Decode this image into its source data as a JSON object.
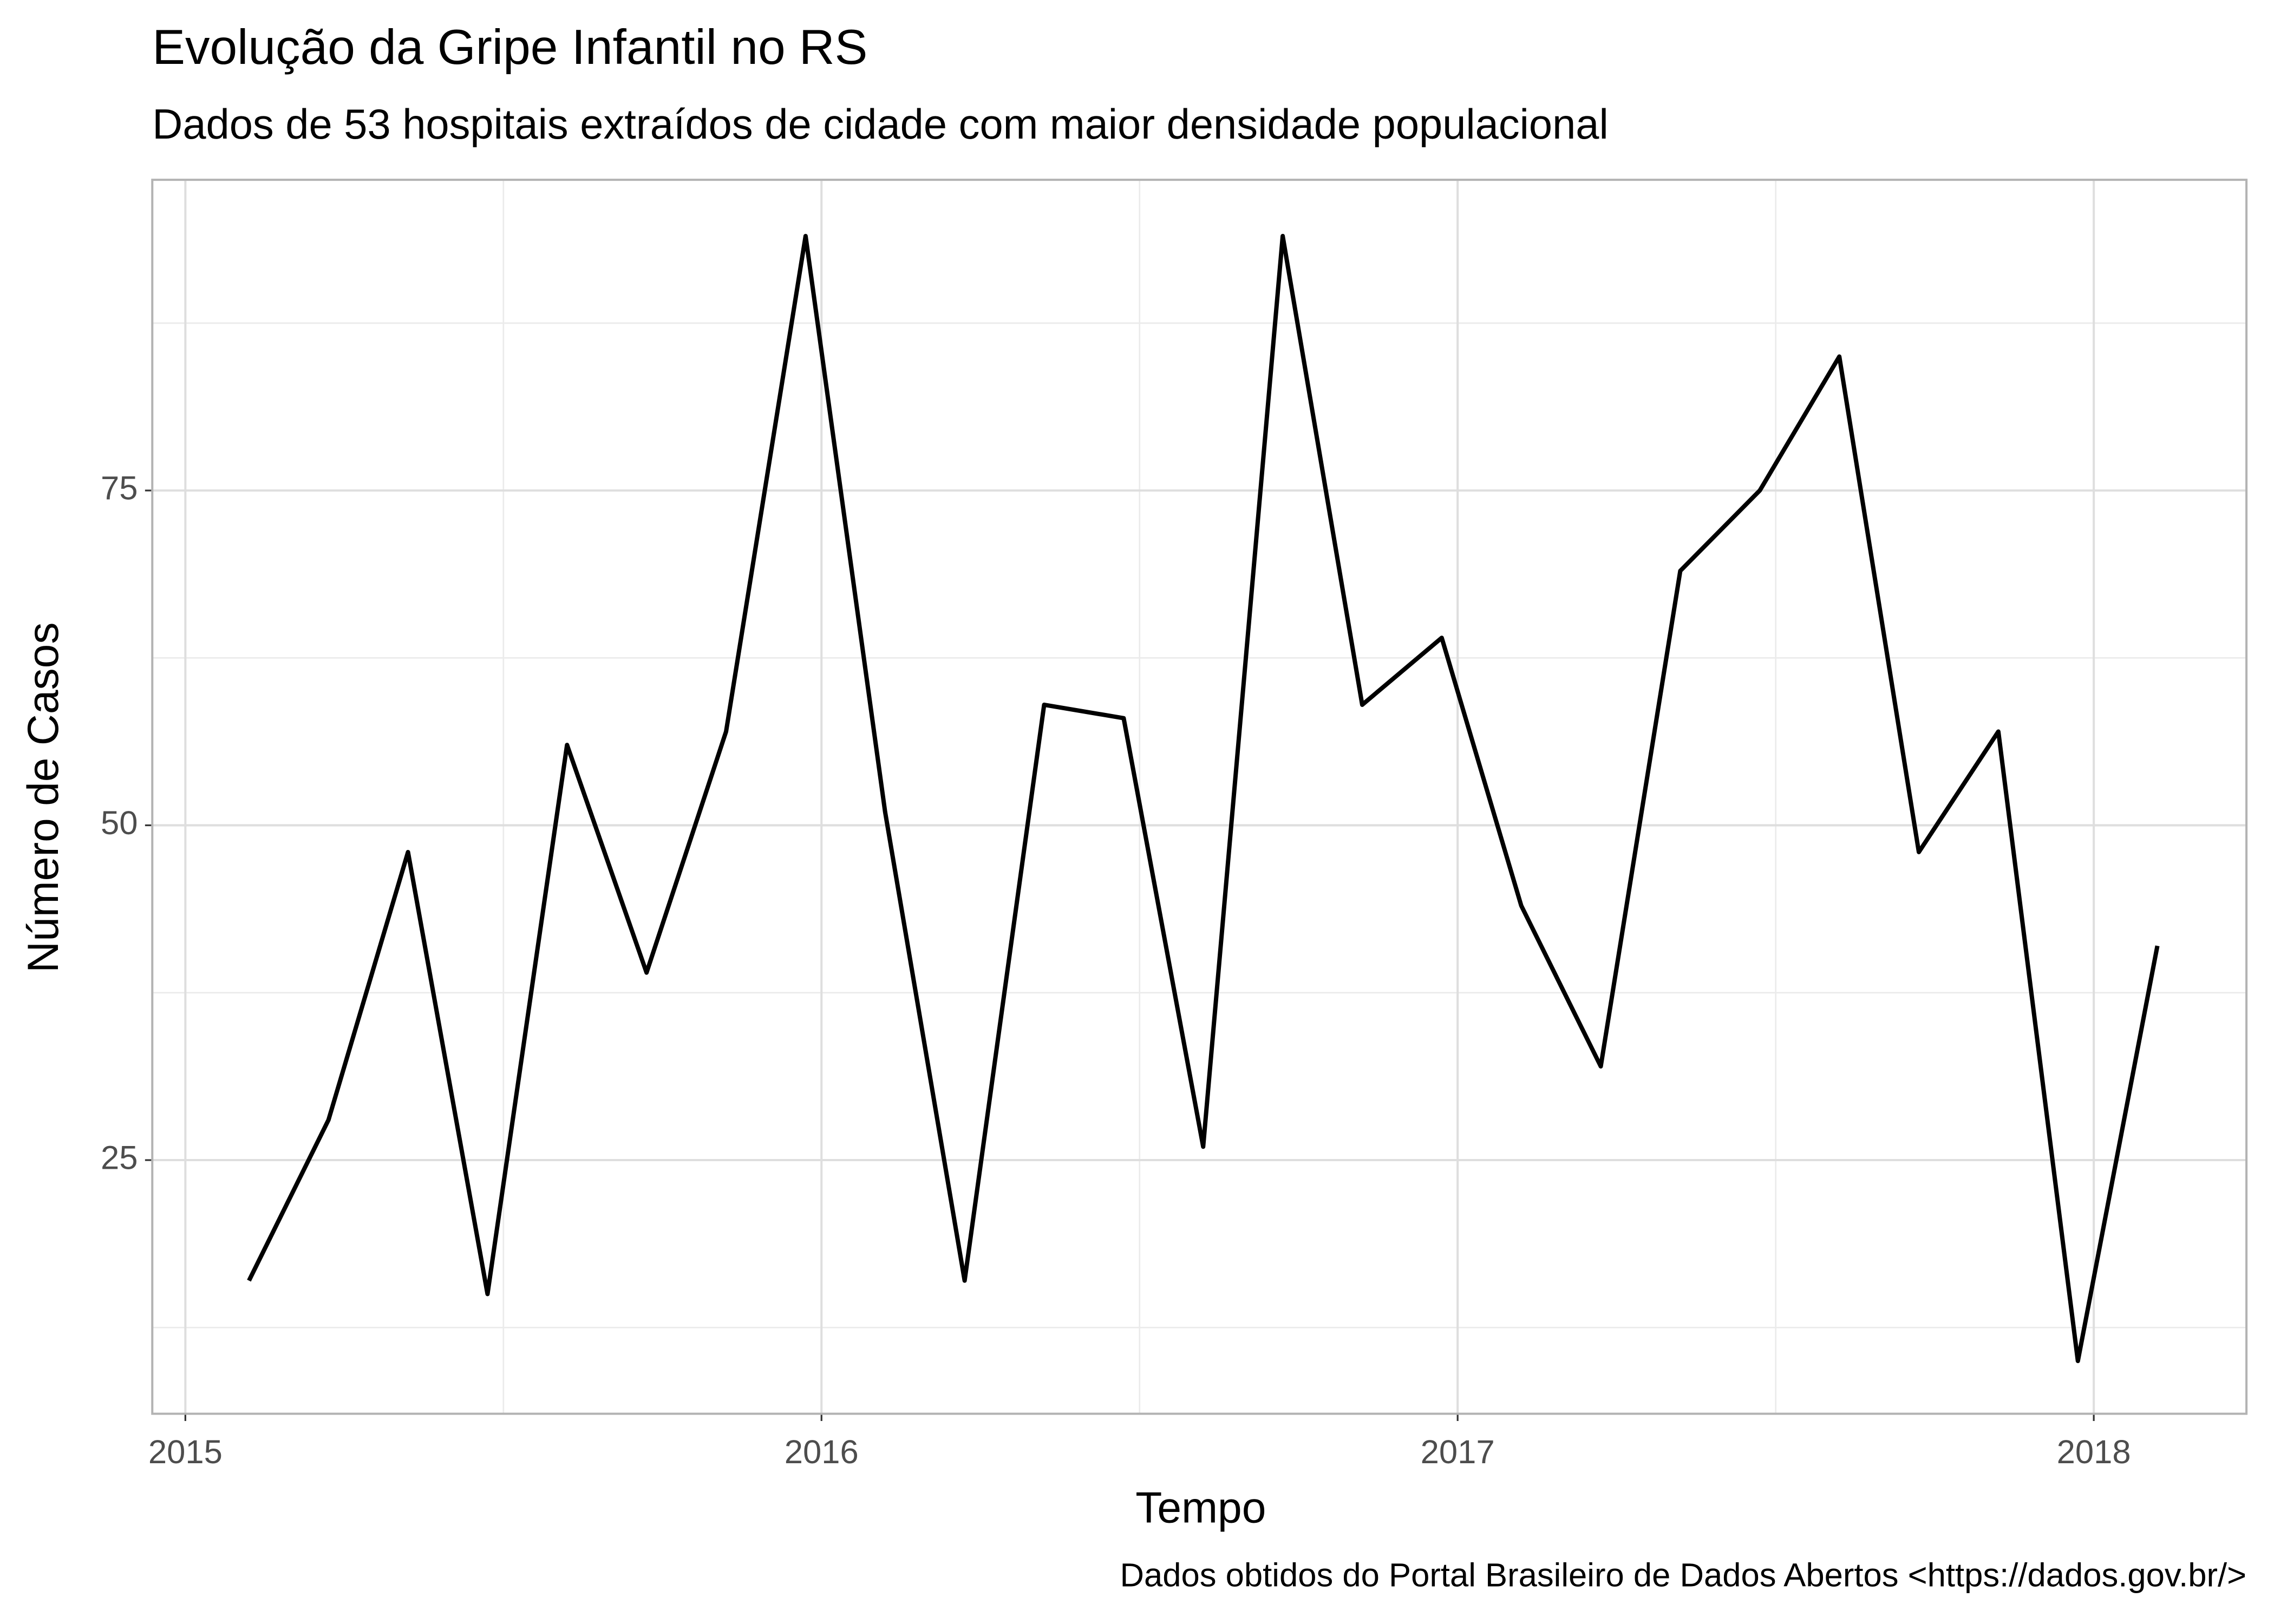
{
  "chart_data": {
    "type": "line",
    "title": "Evolução da Gripe Infantil no RS",
    "subtitle": "Dados de 53 hospitais extraídos de cidade com maior densidade populacional",
    "caption": "Dados obtidos do Portal Brasileiro de Dados Abertos <https://dados.gov.br/>",
    "x_label": "Tempo",
    "y_label": "Número de Casos",
    "x": [
      2015.1,
      2015.225,
      2015.35,
      2015.475,
      2015.6,
      2015.725,
      2015.85,
      2015.975,
      2016.1,
      2016.225,
      2016.35,
      2016.475,
      2016.6,
      2016.725,
      2016.85,
      2016.975,
      2017.1,
      2017.225,
      2017.35,
      2017.475,
      2017.6,
      2017.725,
      2017.85,
      2017.975,
      2018.1
    ],
    "series": [
      {
        "name": "Casos",
        "color": "#000000",
        "values": [
          16,
          28,
          48,
          15,
          56,
          39,
          57,
          94,
          51,
          16,
          59,
          58,
          26,
          94,
          59,
          64,
          44,
          32,
          69,
          75,
          85,
          48,
          57,
          10,
          41
        ]
      }
    ],
    "xlim": [
      2014.948,
      2018.24
    ],
    "ylim": [
      6.06,
      98.2
    ],
    "xticks": [
      2015,
      2016,
      2017,
      2018
    ],
    "yticks": [
      25,
      50,
      75
    ],
    "grid": true
  }
}
